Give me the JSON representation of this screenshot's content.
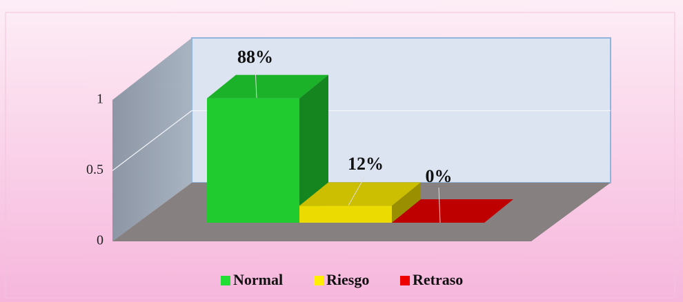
{
  "chart_data": {
    "type": "bar3d",
    "categories": [
      "Normal",
      "Riesgo",
      "Retraso"
    ],
    "values": [
      0.88,
      0.12,
      0
    ],
    "value_labels": [
      "88%",
      "12%",
      "0%"
    ],
    "colors": [
      "#22dd33",
      "#ffee00",
      "#ee0000"
    ],
    "ylim": [
      0,
      1
    ],
    "yticks": [
      0,
      0.5,
      1
    ],
    "grid": true,
    "legend": "bottom"
  }
}
